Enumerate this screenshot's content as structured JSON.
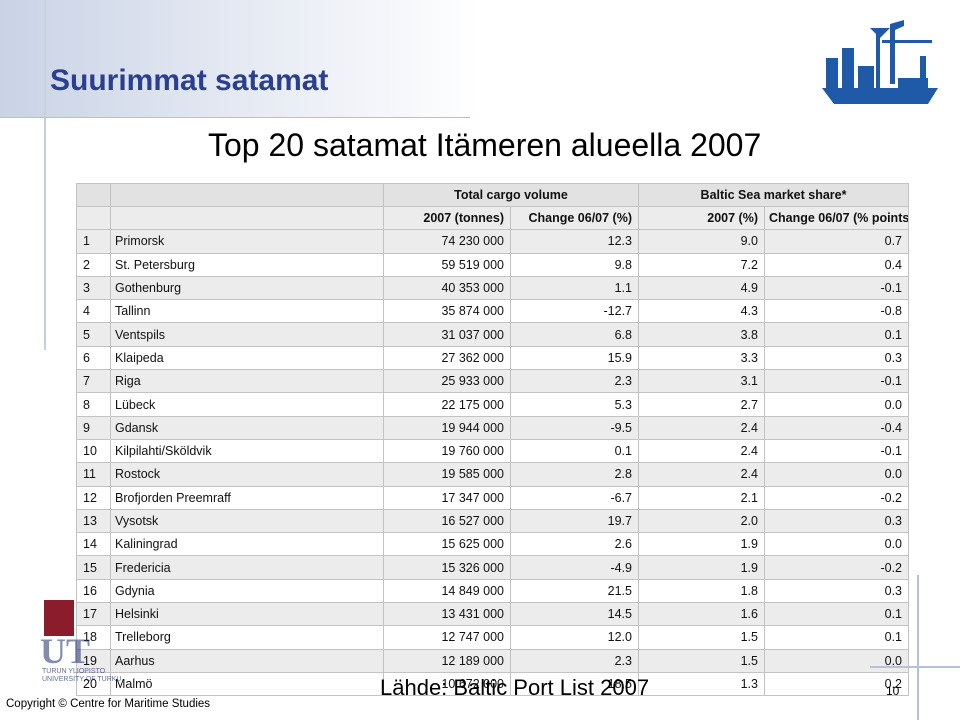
{
  "slide": {
    "title": "Suurimmat satamat",
    "subtitle": "Top 20 satamat Itämeren alueella 2007",
    "source": "Lähde: Baltic Port List 2007",
    "copyright": "Copyright © Centre for Maritime Studies",
    "page_number": "10",
    "logo_text": "UT",
    "university_label": "TURUN YLIOPISTO UNIVERSITY OF TURKU"
  },
  "table": {
    "group_headers": {
      "cargo": "Total cargo volume",
      "share": "Baltic Sea market share*"
    },
    "sub_headers": [
      "2007 (tonnes)",
      "Change 06/07 (%)",
      "2007 (%)",
      "Change 06/07 (% points)"
    ],
    "rows": [
      {
        "rank": "1",
        "port": "Primorsk",
        "tonnes": "74 230 000",
        "change": "12.3",
        "share": "9.0",
        "share_change": "0.7"
      },
      {
        "rank": "2",
        "port": "St. Petersburg",
        "tonnes": "59 519 000",
        "change": "9.8",
        "share": "7.2",
        "share_change": "0.4"
      },
      {
        "rank": "3",
        "port": "Gothenburg",
        "tonnes": "40 353 000",
        "change": "1.1",
        "share": "4.9",
        "share_change": "-0.1"
      },
      {
        "rank": "4",
        "port": "Tallinn",
        "tonnes": "35 874 000",
        "change": "-12.7",
        "share": "4.3",
        "share_change": "-0.8"
      },
      {
        "rank": "5",
        "port": "Ventspils",
        "tonnes": "31 037 000",
        "change": "6.8",
        "share": "3.8",
        "share_change": "0.1"
      },
      {
        "rank": "6",
        "port": "Klaipeda",
        "tonnes": "27 362 000",
        "change": "15.9",
        "share": "3.3",
        "share_change": "0.3"
      },
      {
        "rank": "7",
        "port": "Riga",
        "tonnes": "25 933 000",
        "change": "2.3",
        "share": "3.1",
        "share_change": "-0.1"
      },
      {
        "rank": "8",
        "port": "Lübeck",
        "tonnes": "22 175 000",
        "change": "5.3",
        "share": "2.7",
        "share_change": "0.0"
      },
      {
        "rank": "9",
        "port": "Gdansk",
        "tonnes": "19 944 000",
        "change": "-9.5",
        "share": "2.4",
        "share_change": "-0.4"
      },
      {
        "rank": "10",
        "port": "Kilpilahti/Sköldvik",
        "tonnes": "19 760 000",
        "change": "0.1",
        "share": "2.4",
        "share_change": "-0.1"
      },
      {
        "rank": "11",
        "port": "Rostock",
        "tonnes": "19 585 000",
        "change": "2.8",
        "share": "2.4",
        "share_change": "0.0"
      },
      {
        "rank": "12",
        "port": "Brofjorden Preemraff",
        "tonnes": "17 347 000",
        "change": "-6.7",
        "share": "2.1",
        "share_change": "-0.2"
      },
      {
        "rank": "13",
        "port": "Vysotsk",
        "tonnes": "16 527 000",
        "change": "19.7",
        "share": "2.0",
        "share_change": "0.3"
      },
      {
        "rank": "14",
        "port": "Kaliningrad",
        "tonnes": "15 625 000",
        "change": "2.6",
        "share": "1.9",
        "share_change": "0.0"
      },
      {
        "rank": "15",
        "port": "Fredericia",
        "tonnes": "15 326 000",
        "change": "-4.9",
        "share": "1.9",
        "share_change": "-0.2"
      },
      {
        "rank": "16",
        "port": "Gdynia",
        "tonnes": "14 849 000",
        "change": "21.5",
        "share": "1.8",
        "share_change": "0.3"
      },
      {
        "rank": "17",
        "port": "Helsinki",
        "tonnes": "13 431 000",
        "change": "14.5",
        "share": "1.6",
        "share_change": "0.1"
      },
      {
        "rank": "18",
        "port": "Trelleborg",
        "tonnes": "12 747 000",
        "change": "12.0",
        "share": "1.5",
        "share_change": "0.1"
      },
      {
        "rank": "19",
        "port": "Aarhus",
        "tonnes": "12 189 000",
        "change": "2.3",
        "share": "1.5",
        "share_change": "0.0"
      },
      {
        "rank": "20",
        "port": "Malmö",
        "tonnes": "10 672 000",
        "change": "18.5",
        "share": "1.3",
        "share_change": "0.2"
      }
    ]
  },
  "colors": {
    "title": "#2a3f8f",
    "logo": "#1f5aa8",
    "uni_red": "#8a1c2b"
  }
}
